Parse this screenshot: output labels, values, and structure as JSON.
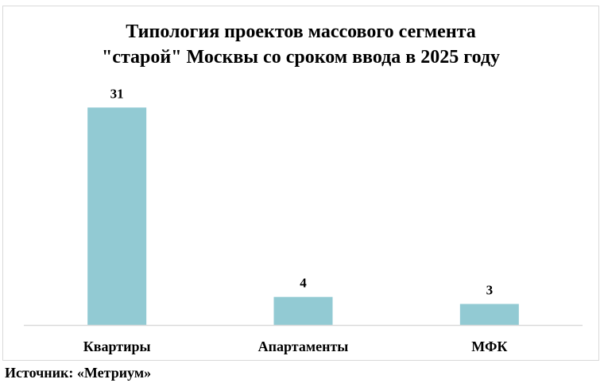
{
  "chart_data": {
    "type": "bar",
    "title_lines": [
      "Типология проектов массового сегмента",
      "\"старой\" Москвы со сроком ввода в 2025 году"
    ],
    "categories": [
      "Квартиры",
      "Апартаменты",
      "МФК"
    ],
    "values": [
      31,
      4,
      3
    ],
    "data_labels": [
      "31",
      "4",
      "3"
    ],
    "xlabel": "",
    "ylabel": "",
    "ylim": [
      0,
      35
    ],
    "grid": false,
    "legend": "none",
    "bar_color": "#92cad3",
    "axis_color": "#d9d9d9"
  },
  "source": "Источник: «Метриум»"
}
